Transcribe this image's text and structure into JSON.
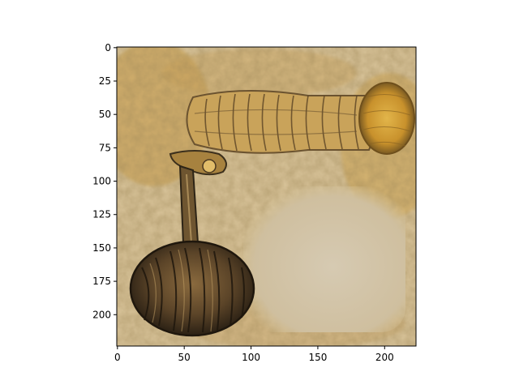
{
  "chart_data": {
    "type": "heatmap",
    "title": "",
    "xlabel": "",
    "ylabel": "",
    "xlim": [
      -0.5,
      223.5
    ],
    "ylim": [
      223.5,
      -0.5
    ],
    "xticks": [
      0,
      50,
      100,
      150,
      200
    ],
    "yticks": [
      0,
      25,
      50,
      75,
      100,
      125,
      150,
      175,
      200
    ],
    "grid": false,
    "legend": "none"
  },
  "image": {
    "colors": {
      "base": "#d9c49a",
      "ochre": "#c89a3c",
      "golden": "#d4a43a",
      "dark": "#3b2f1c",
      "pale_patch": "#d2c5aa"
    }
  }
}
